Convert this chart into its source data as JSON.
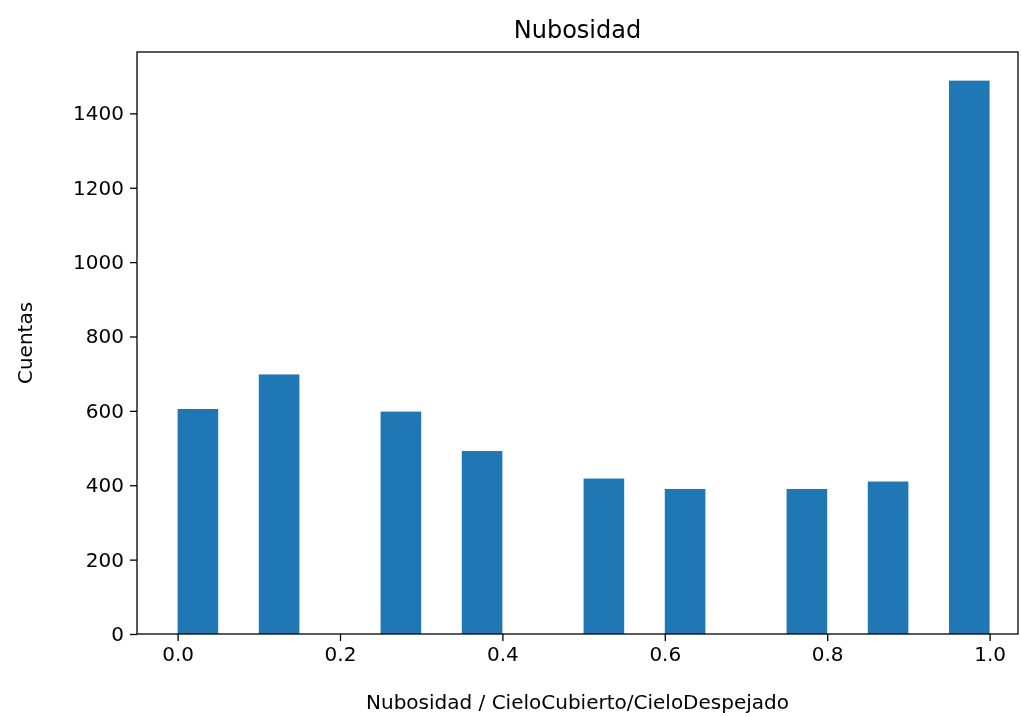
{
  "chart_data": {
    "type": "histogram",
    "title": "Nubosidad",
    "xlabel": "Nubosidad / CieloCubierto/CieloDespejado",
    "ylabel": "Cuentas",
    "bins": [
      0,
      0.05,
      0.1,
      0.15,
      0.2,
      0.25,
      0.3,
      0.35,
      0.4,
      0.45,
      0.5,
      0.55,
      0.6,
      0.65,
      0.7,
      0.75,
      0.8,
      0.85,
      0.9,
      0.95,
      1
    ],
    "values": [
      605,
      0,
      698,
      0,
      0,
      598,
      0,
      492,
      0,
      0,
      418,
      0,
      390,
      0,
      0,
      390,
      0,
      410,
      0,
      1488
    ],
    "color": "#1f77b4",
    "xlim": [
      -0.05,
      1.035
    ],
    "ylim": [
      0,
      1565
    ],
    "xticks": [
      {
        "value": 0,
        "label": "0.0"
      },
      {
        "value": 0.2,
        "label": "0.2"
      },
      {
        "value": 0.4,
        "label": "0.4"
      },
      {
        "value": 0.6,
        "label": "0.6"
      },
      {
        "value": 0.8,
        "label": "0.8"
      },
      {
        "value": 1,
        "label": "1.0"
      }
    ],
    "yticks": [
      0,
      200,
      400,
      600,
      800,
      1000,
      1200,
      1400
    ],
    "grid": false
  }
}
